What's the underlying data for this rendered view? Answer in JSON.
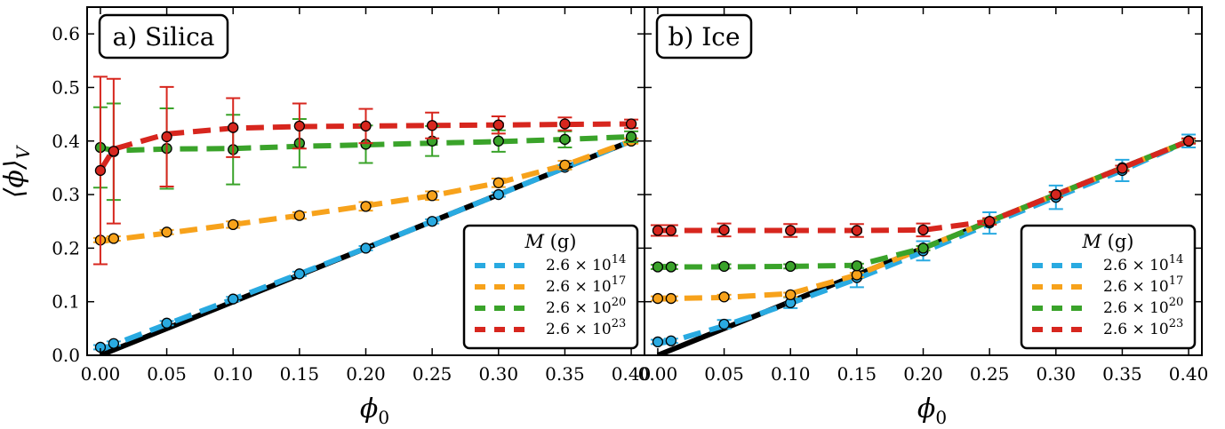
{
  "chart_data": [
    {
      "type": "line",
      "panel_label": "a) Silica",
      "xlabel": "ϕ0",
      "ylabel": "⟨ϕ⟩V",
      "xlim": [
        -0.01,
        0.41
      ],
      "ylim": [
        0.0,
        0.65
      ],
      "xticks": [
        "0.00",
        "0.05",
        "0.10",
        "0.15",
        "0.20",
        "0.25",
        "0.30",
        "0.35",
        "0.40"
      ],
      "yticks": [
        "0.0",
        "0.1",
        "0.2",
        "0.3",
        "0.4",
        "0.5",
        "0.6"
      ],
      "reference_line": {
        "x": [
          0.0,
          0.4
        ],
        "y": [
          0.0,
          0.4
        ],
        "color": "#000000"
      },
      "legend": {
        "title": "M (g)",
        "placement": "lower-right"
      },
      "series": [
        {
          "name": "2.6 × 10^14",
          "color": "#29aae1",
          "x": [
            0.0,
            0.01,
            0.05,
            0.1,
            0.15,
            0.2,
            0.25,
            0.3,
            0.35,
            0.4
          ],
          "y": [
            0.015,
            0.022,
            0.06,
            0.105,
            0.152,
            0.2,
            0.25,
            0.3,
            0.351,
            0.4
          ],
          "err": [
            0.004,
            0.004,
            0.004,
            0.004,
            0.004,
            0.004,
            0.004,
            0.004,
            0.004,
            0.004
          ],
          "fit_y": [
            0.01,
            0.02,
            0.058,
            0.105,
            0.152,
            0.2,
            0.25,
            0.3,
            0.35,
            0.4
          ]
        },
        {
          "name": "2.6 × 10^17",
          "color": "#f7a21b",
          "x": [
            0.0,
            0.01,
            0.05,
            0.1,
            0.15,
            0.2,
            0.25,
            0.3,
            0.35,
            0.4
          ],
          "y": [
            0.215,
            0.218,
            0.23,
            0.244,
            0.261,
            0.278,
            0.298,
            0.322,
            0.355,
            0.4
          ],
          "err": [
            0.004,
            0.004,
            0.004,
            0.006,
            0.006,
            0.008,
            0.008,
            0.008,
            0.008,
            0.005
          ],
          "fit_y": [
            0.212,
            0.216,
            0.228,
            0.244,
            0.261,
            0.279,
            0.298,
            0.322,
            0.355,
            0.4
          ]
        },
        {
          "name": "2.6 × 10^20",
          "color": "#3aa32a",
          "x": [
            0.0,
            0.01,
            0.05,
            0.1,
            0.15,
            0.2,
            0.25,
            0.3,
            0.35,
            0.4
          ],
          "y": [
            0.388,
            0.38,
            0.386,
            0.384,
            0.396,
            0.394,
            0.4,
            0.4,
            0.403,
            0.408
          ],
          "err": [
            0.075,
            0.09,
            0.075,
            0.065,
            0.045,
            0.035,
            0.028,
            0.02,
            0.015,
            0.01
          ],
          "fit_y": [
            0.388,
            0.382,
            0.385,
            0.386,
            0.39,
            0.393,
            0.396,
            0.399,
            0.403,
            0.408
          ]
        },
        {
          "name": "2.6 × 10^23",
          "color": "#d7261e",
          "x": [
            0.0,
            0.01,
            0.05,
            0.1,
            0.15,
            0.2,
            0.25,
            0.3,
            0.35,
            0.4
          ],
          "y": [
            0.345,
            0.381,
            0.408,
            0.425,
            0.428,
            0.428,
            0.429,
            0.43,
            0.432,
            0.432
          ],
          "err": [
            0.175,
            0.135,
            0.093,
            0.055,
            0.042,
            0.032,
            0.024,
            0.016,
            0.012,
            0.008
          ],
          "fit_y": [
            0.345,
            0.385,
            0.413,
            0.424,
            0.427,
            0.428,
            0.429,
            0.43,
            0.431,
            0.432
          ]
        }
      ]
    },
    {
      "type": "line",
      "panel_label": "b) Ice",
      "xlabel": "ϕ0",
      "ylabel": "",
      "xlim": [
        -0.01,
        0.41
      ],
      "ylim": [
        0.0,
        0.65
      ],
      "xticks": [
        "0.00",
        "0.05",
        "0.10",
        "0.15",
        "0.20",
        "0.25",
        "0.30",
        "0.35",
        "0.40"
      ],
      "yticks": [],
      "reference_line": {
        "x": [
          0.0,
          0.4
        ],
        "y": [
          0.0,
          0.4
        ],
        "color": "#000000"
      },
      "legend": {
        "title": "M (g)",
        "placement": "lower-right"
      },
      "series": [
        {
          "name": "2.6 × 10^14",
          "color": "#29aae1",
          "x": [
            0.0,
            0.01,
            0.05,
            0.1,
            0.15,
            0.2,
            0.25,
            0.3,
            0.35,
            0.4
          ],
          "y": [
            0.025,
            0.027,
            0.058,
            0.098,
            0.145,
            0.195,
            0.247,
            0.295,
            0.345,
            0.4
          ],
          "err": [
            0.004,
            0.004,
            0.008,
            0.01,
            0.018,
            0.018,
            0.02,
            0.022,
            0.02,
            0.012
          ],
          "fit_y": [
            0.022,
            0.026,
            0.055,
            0.097,
            0.143,
            0.193,
            0.245,
            0.295,
            0.345,
            0.4
          ]
        },
        {
          "name": "2.6 × 10^17",
          "color": "#f7a21b",
          "x": [
            0.0,
            0.01,
            0.05,
            0.1,
            0.15,
            0.2,
            0.25,
            0.3,
            0.35,
            0.4
          ],
          "y": [
            0.106,
            0.106,
            0.109,
            0.113,
            0.15,
            0.2,
            0.25,
            0.3,
            0.35,
            0.4
          ],
          "err": [
            0.004,
            0.004,
            0.004,
            0.004,
            0.004,
            0.004,
            0.004,
            0.004,
            0.004,
            0.004
          ],
          "fit_y": [
            0.106,
            0.106,
            0.108,
            0.115,
            0.15,
            0.2,
            0.25,
            0.3,
            0.35,
            0.4
          ]
        },
        {
          "name": "2.6 × 10^20",
          "color": "#3aa32a",
          "x": [
            0.0,
            0.01,
            0.05,
            0.1,
            0.15,
            0.2,
            0.25,
            0.3,
            0.35,
            0.4
          ],
          "y": [
            0.165,
            0.165,
            0.166,
            0.166,
            0.167,
            0.2,
            0.25,
            0.3,
            0.35,
            0.4
          ],
          "err": [
            0.004,
            0.004,
            0.004,
            0.004,
            0.004,
            0.004,
            0.004,
            0.004,
            0.004,
            0.004
          ],
          "fit_y": [
            0.165,
            0.165,
            0.165,
            0.166,
            0.168,
            0.2,
            0.25,
            0.3,
            0.35,
            0.4
          ]
        },
        {
          "name": "2.6 × 10^23",
          "color": "#d7261e",
          "x": [
            0.0,
            0.01,
            0.05,
            0.1,
            0.15,
            0.2,
            0.25,
            0.3,
            0.35,
            0.4
          ],
          "y": [
            0.233,
            0.233,
            0.234,
            0.233,
            0.233,
            0.234,
            0.25,
            0.3,
            0.349,
            0.4
          ],
          "err": [
            0.01,
            0.01,
            0.012,
            0.012,
            0.012,
            0.012,
            0.006,
            0.005,
            0.005,
            0.005
          ],
          "fit_y": [
            0.233,
            0.233,
            0.233,
            0.233,
            0.233,
            0.234,
            0.25,
            0.3,
            0.35,
            0.4
          ]
        }
      ]
    }
  ]
}
